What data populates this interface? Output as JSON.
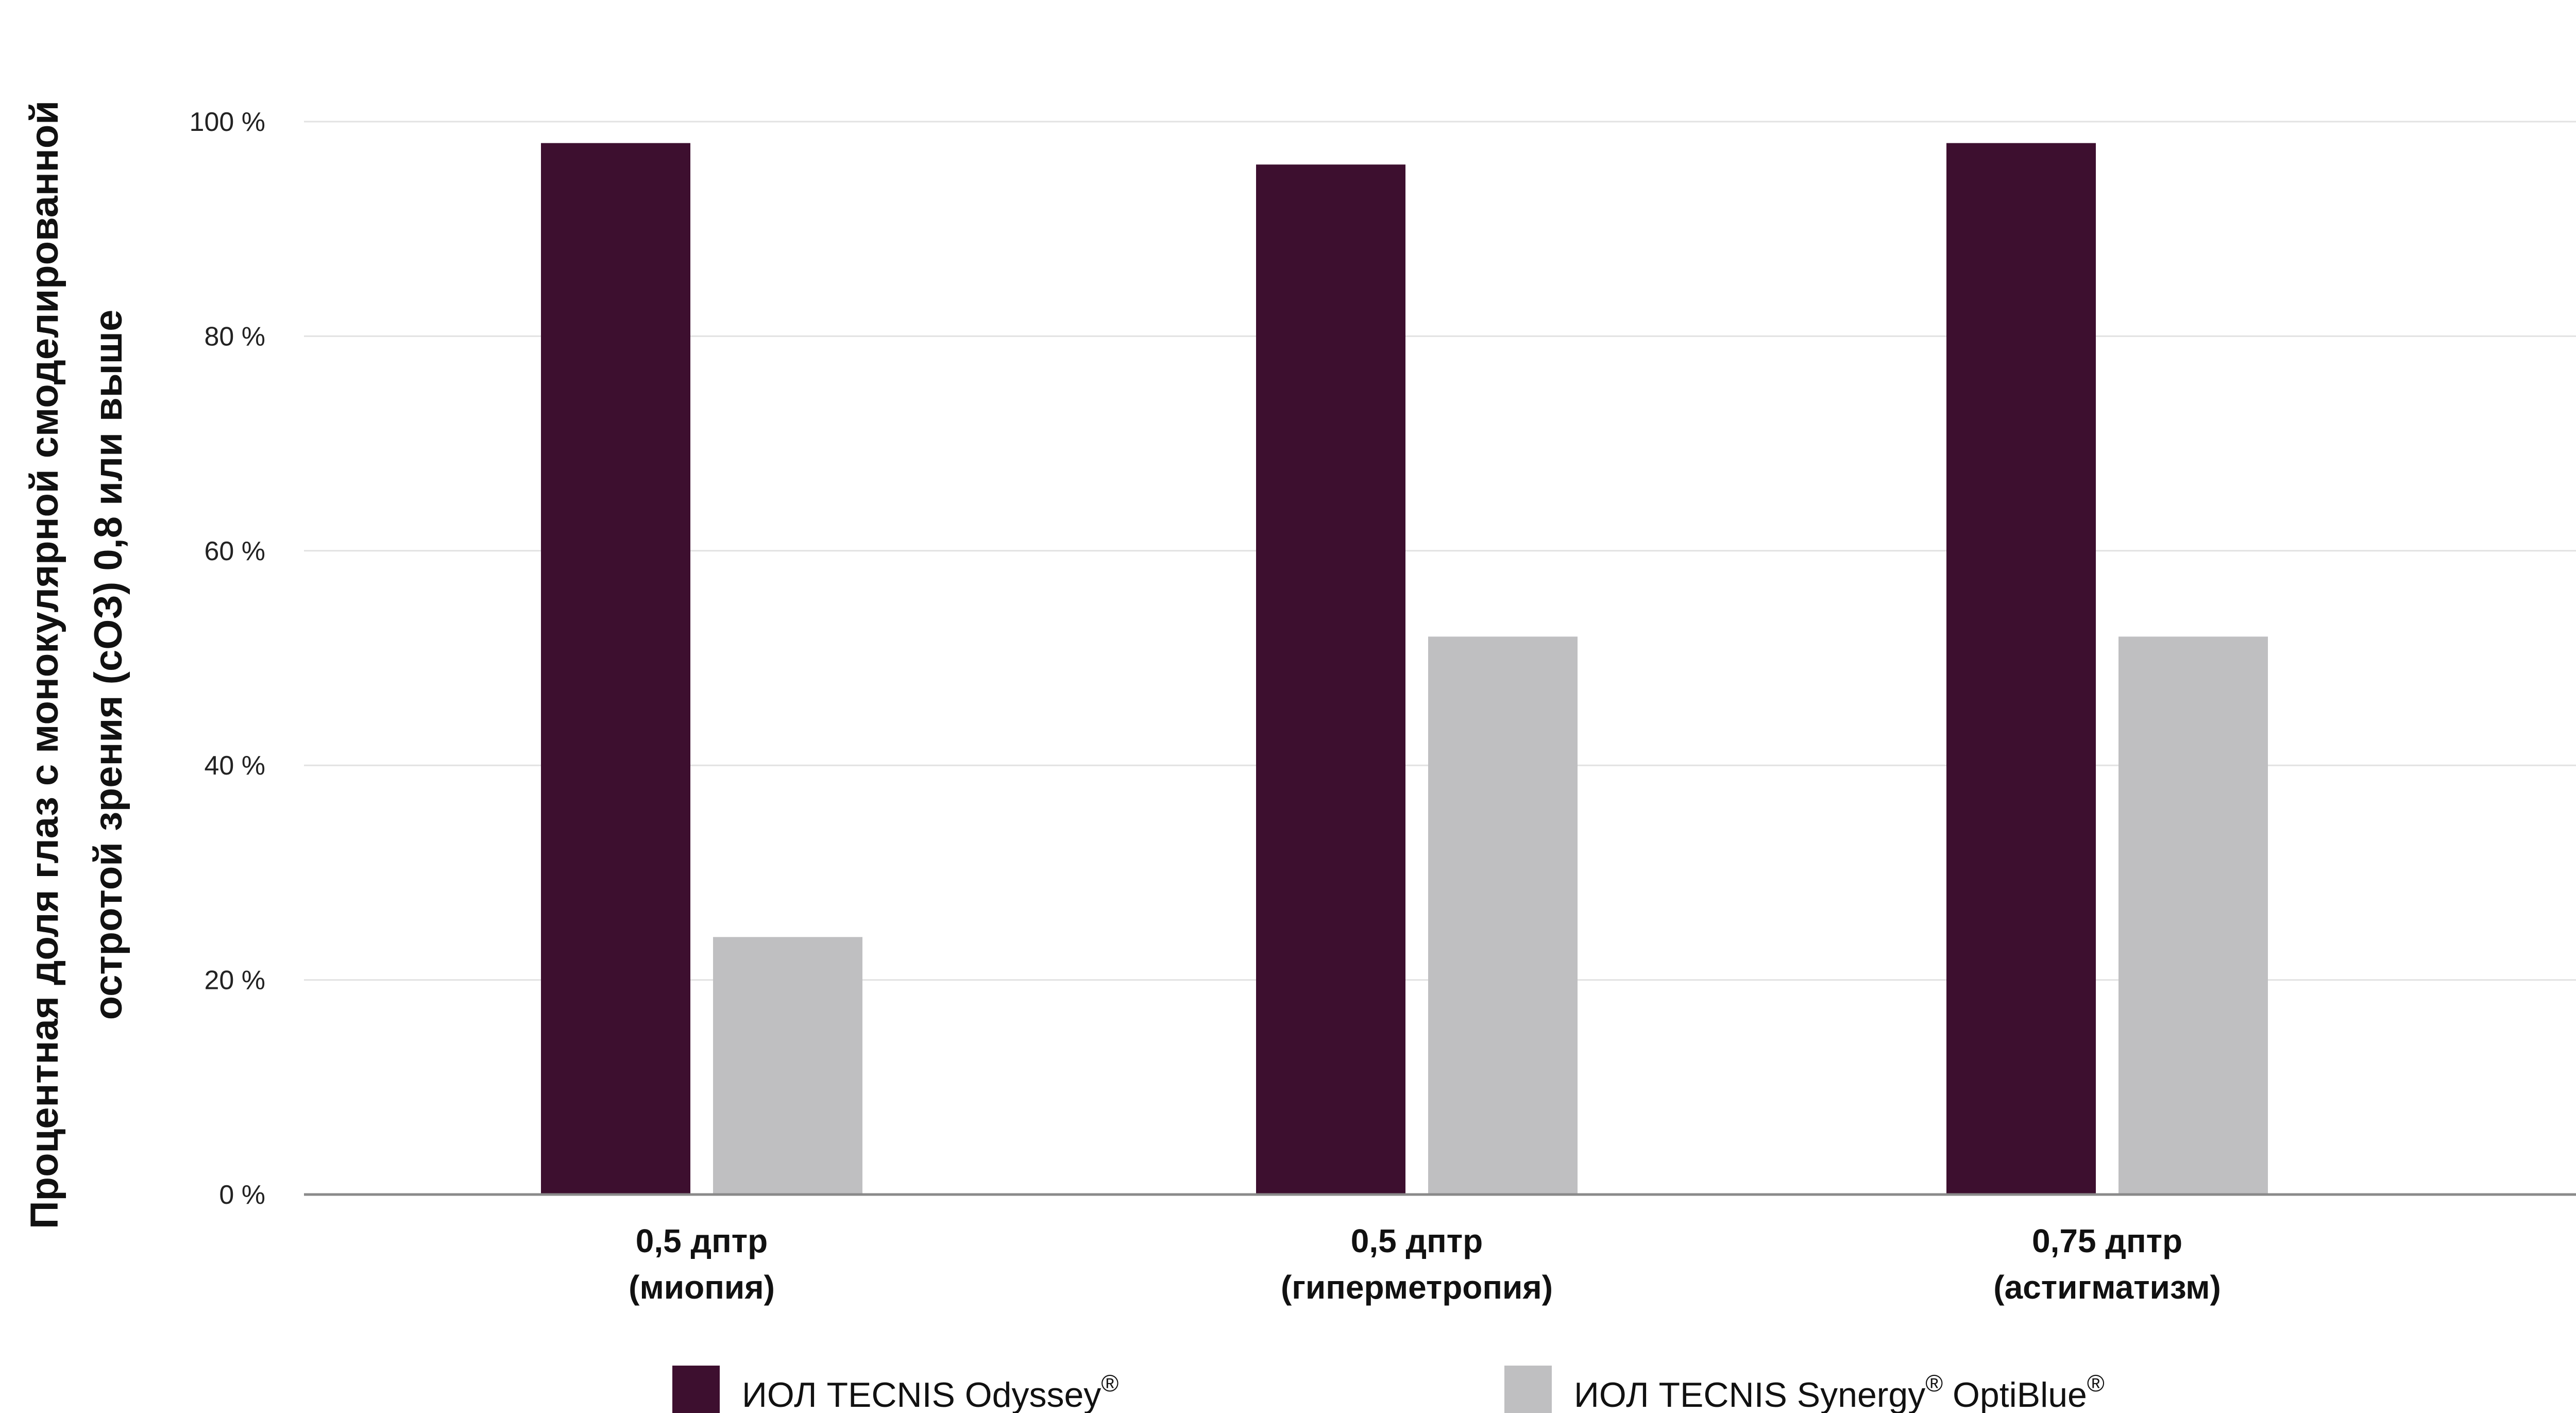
{
  "chart_data": {
    "type": "bar",
    "title": "",
    "xlabel": "",
    "ylabel_lines": [
      "Процентная доля глаз с монокулярной смоделированной",
      "остротой зрения (сОЗ) 0,8 или выше"
    ],
    "categories": [
      [
        "0,5 дптр",
        "(миопия)"
      ],
      [
        "0,5 дптр",
        "(гиперметропия)"
      ],
      [
        "0,75 дптр",
        "(астигматизм)"
      ]
    ],
    "series": [
      {
        "name": "ИОЛ TECNIS Odyssey",
        "name_sup": "®",
        "color": "#3d0f2f",
        "values": [
          98,
          96,
          98
        ]
      },
      {
        "name": "ИОЛ TECNIS Synergy",
        "name_sup": "®",
        "name_suffix": " OptiBlue",
        "name_suffix_sup": "®",
        "color": "#bfbfc1",
        "values": [
          24,
          52,
          52
        ]
      }
    ],
    "ylim": [
      0,
      100
    ],
    "yticks": [
      0,
      20,
      40,
      60,
      80,
      100
    ],
    "ytick_labels": [
      "0 %",
      "20 %",
      "40 %",
      "60 %",
      "80 %",
      "100 %"
    ],
    "grid": true,
    "legend": "bottom"
  }
}
